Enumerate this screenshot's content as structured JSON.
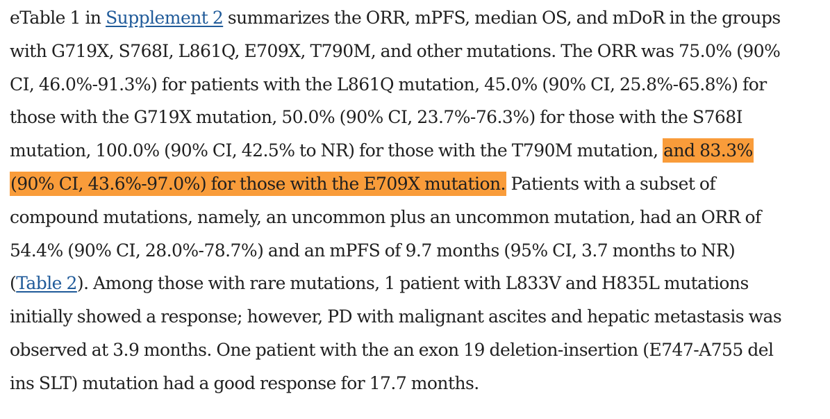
{
  "paragraph": {
    "lines": [
      {
        "pre": "eTable 1 in ",
        "link": "Supplement 2",
        "post": " summarizes the ORR, mPFS, median OS, and mDoR in the groups"
      },
      {
        "text": "with G719X, S768I, L861Q, E709X, T790M, and other mutations. The ORR was 75.0% (90%"
      },
      {
        "text": "CI, 46.0%-91.3%) for patients with the L861Q mutation, 45.0% (90% CI, 25.8%-65.8%) for"
      },
      {
        "text": "those with the G719X mutation, 50.0% (90% CI, 23.7%-76.3%) for those with the S768I"
      },
      {
        "pre": "mutation, 100.0% (90% CI, 42.5% to NR) for those with the T790M mutation, ",
        "highlight": "and 83.3%"
      },
      {
        "highlight": "(90% CI, 43.6%-97.0%) for those with the E709X mutation.",
        "post": " Patients with a subset of"
      },
      {
        "text": "compound mutations, namely, an uncommon plus an uncommon mutation, had an ORR of"
      },
      {
        "text": "54.4% (90% CI, 28.0%-78.7%) and an mPFS of 9.7 months (95% CI, 3.7 months to NR)"
      },
      {
        "pre": "(",
        "link": "Table 2",
        "post": "). Among those with rare mutations, 1 patient with L833V and H835L mutations"
      },
      {
        "text": "initially showed a response; however, PD with malignant ascites and hepatic metastasis was"
      },
      {
        "text": "observed at 3.9 months. One patient with the an exon 19 deletion-insertion (E747-A755 del"
      },
      {
        "text": "ins SLT) mutation had a good response for 17.7 months."
      }
    ]
  },
  "colors": {
    "text": "#1f1f1f",
    "link": "#1f5a99",
    "highlight": "#f99c3a"
  }
}
